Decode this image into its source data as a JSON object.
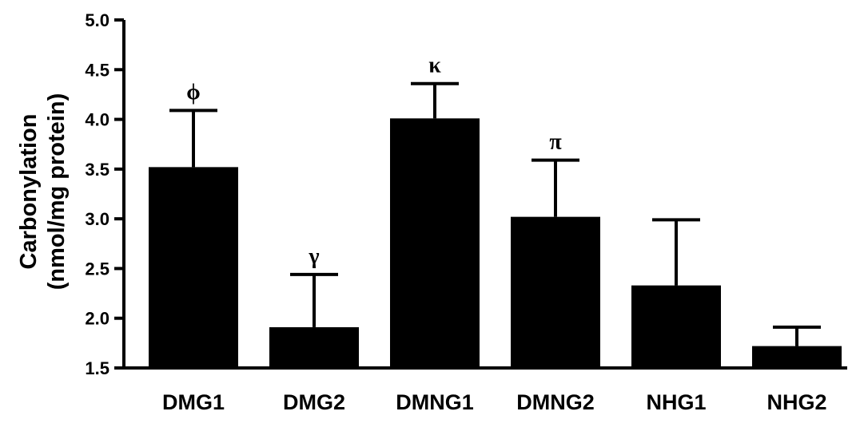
{
  "chart_data": {
    "type": "bar",
    "title": "",
    "xlabel": "",
    "ylabel": "Carbonylation",
    "ylabel_line2": "(nmol/mg protein)",
    "ylim": [
      1.5,
      5.0
    ],
    "yticks": [
      1.5,
      2.0,
      2.5,
      3.0,
      3.5,
      4.0,
      4.5,
      5.0
    ],
    "ytick_labels": [
      "1.5",
      "2.0",
      "2.5",
      "3.0",
      "3.5",
      "4.0",
      "4.5",
      "5.0"
    ],
    "grid": false,
    "bar_color": "#000000",
    "categories": [
      "DMG1",
      "DMG2",
      "DMNG1",
      "DMNG2",
      "NHG1",
      "NHG2"
    ],
    "values": [
      3.52,
      1.91,
      4.01,
      3.02,
      2.33,
      1.72
    ],
    "errors": [
      0.57,
      0.53,
      0.35,
      0.57,
      0.66,
      0.19
    ],
    "annotations": [
      "ϕ",
      "γ",
      "κ",
      "π",
      "",
      ""
    ]
  }
}
